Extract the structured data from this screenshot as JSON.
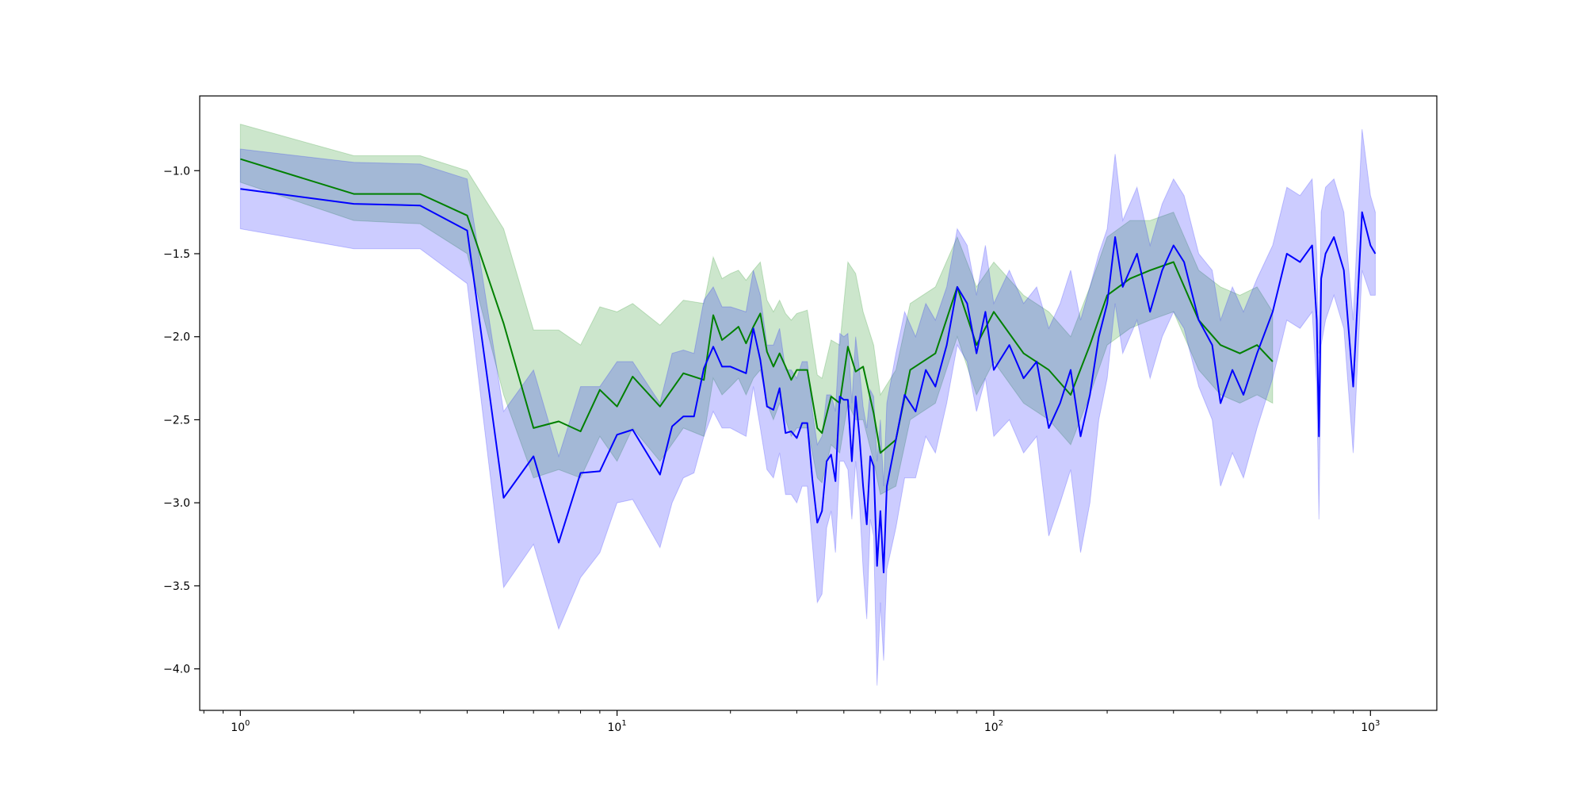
{
  "chart_data": {
    "type": "line",
    "title": "",
    "xlabel": "",
    "ylabel": "",
    "x_scale": "log",
    "xlim": [
      0.78,
      1500
    ],
    "ylim": [
      -4.25,
      -0.55
    ],
    "x_ticks": [
      {
        "value": 1,
        "base": "10",
        "exp": "0"
      },
      {
        "value": 10,
        "base": "10",
        "exp": "1"
      },
      {
        "value": 100,
        "base": "10",
        "exp": "2"
      },
      {
        "value": 1000,
        "base": "10",
        "exp": "3"
      }
    ],
    "y_ticks": [
      {
        "value": -1.0,
        "label": "−1.0"
      },
      {
        "value": -1.5,
        "label": "−1.5"
      },
      {
        "value": -2.0,
        "label": "−2.0"
      },
      {
        "value": -2.5,
        "label": "−2.5"
      },
      {
        "value": -3.0,
        "label": "−3.0"
      },
      {
        "value": -3.5,
        "label": "−3.5"
      },
      {
        "value": -4.0,
        "label": "−4.0"
      }
    ],
    "grid": false,
    "legend": "none",
    "series": [
      {
        "color": "#008000",
        "band_color": "#008000",
        "band_opacity": 0.2,
        "x": [
          1,
          2,
          3,
          4,
          5,
          6,
          7,
          8,
          9,
          10,
          11,
          13,
          15,
          17,
          18,
          19,
          20,
          21,
          22,
          23,
          24,
          25,
          26,
          27,
          28,
          29,
          30,
          32,
          34,
          35,
          37,
          39,
          41,
          43,
          45,
          48,
          50,
          55,
          60,
          70,
          80,
          90,
          100,
          120,
          140,
          160,
          180,
          200,
          230,
          260,
          300,
          350,
          400,
          450,
          500,
          550
        ],
        "y": [
          -0.93,
          -1.14,
          -1.14,
          -1.27,
          -1.92,
          -2.55,
          -2.51,
          -2.57,
          -2.32,
          -2.42,
          -2.24,
          -2.42,
          -2.22,
          -2.26,
          -1.87,
          -2.02,
          -1.98,
          -1.94,
          -2.04,
          -1.94,
          -1.86,
          -2.09,
          -2.18,
          -2.1,
          -2.18,
          -2.26,
          -2.2,
          -2.2,
          -2.55,
          -2.58,
          -2.36,
          -2.4,
          -2.06,
          -2.21,
          -2.18,
          -2.46,
          -2.7,
          -2.62,
          -2.2,
          -2.1,
          -1.7,
          -2.05,
          -1.85,
          -2.1,
          -2.2,
          -2.35,
          -2.05,
          -1.75,
          -1.65,
          -1.6,
          -1.55,
          -1.9,
          -2.05,
          -2.1,
          -2.05,
          -2.15
        ],
        "lower": [
          -1.07,
          -1.3,
          -1.32,
          -1.5,
          -2.35,
          -2.85,
          -2.8,
          -2.85,
          -2.6,
          -2.75,
          -2.55,
          -2.75,
          -2.55,
          -2.6,
          -2.25,
          -2.35,
          -2.3,
          -2.25,
          -2.35,
          -2.25,
          -2.2,
          -2.4,
          -2.5,
          -2.4,
          -2.5,
          -2.6,
          -2.55,
          -2.55,
          -2.85,
          -2.88,
          -2.65,
          -2.7,
          -2.4,
          -2.5,
          -2.5,
          -2.75,
          -2.95,
          -2.9,
          -2.5,
          -2.4,
          -2.0,
          -2.35,
          -2.15,
          -2.4,
          -2.5,
          -2.65,
          -2.35,
          -2.05,
          -1.95,
          -1.9,
          -1.85,
          -2.2,
          -2.35,
          -2.4,
          -2.35,
          -2.4
        ],
        "upper": [
          -0.72,
          -0.91,
          -0.91,
          -1.0,
          -1.35,
          -1.96,
          -1.96,
          -2.05,
          -1.82,
          -1.85,
          -1.8,
          -1.93,
          -1.78,
          -1.8,
          -1.52,
          -1.65,
          -1.62,
          -1.6,
          -1.66,
          -1.6,
          -1.55,
          -1.78,
          -1.85,
          -1.78,
          -1.86,
          -1.9,
          -1.86,
          -1.84,
          -2.23,
          -2.25,
          -2.02,
          -2.05,
          -1.55,
          -1.62,
          -1.85,
          -2.05,
          -2.35,
          -2.2,
          -1.8,
          -1.7,
          -1.4,
          -1.7,
          -1.55,
          -1.75,
          -1.85,
          -2.0,
          -1.7,
          -1.4,
          -1.3,
          -1.3,
          -1.25,
          -1.6,
          -1.7,
          -1.75,
          -1.7,
          -1.85
        ]
      },
      {
        "color": "#0000ff",
        "band_color": "#0000ff",
        "band_opacity": 0.2,
        "x": [
          1,
          2,
          3,
          4,
          5,
          6,
          7,
          8,
          9,
          10,
          11,
          13,
          14,
          15,
          16,
          17,
          18,
          19,
          20,
          22,
          23,
          24,
          25,
          26,
          27,
          28,
          29,
          30,
          31,
          32,
          33,
          34,
          35,
          36,
          37,
          38,
          39,
          40,
          41,
          42,
          43,
          44,
          45,
          46,
          47,
          48,
          49,
          50,
          51,
          52,
          55,
          58,
          62,
          66,
          70,
          75,
          80,
          85,
          90,
          95,
          100,
          110,
          120,
          130,
          140,
          150,
          160,
          170,
          180,
          190,
          200,
          210,
          220,
          240,
          260,
          280,
          300,
          320,
          350,
          380,
          400,
          430,
          460,
          500,
          550,
          600,
          650,
          700,
          720,
          730,
          740,
          760,
          800,
          850,
          900,
          950,
          1000,
          1030
        ],
        "y": [
          -1.11,
          -1.2,
          -1.21,
          -1.36,
          -2.97,
          -2.72,
          -3.24,
          -2.82,
          -2.81,
          -2.59,
          -2.56,
          -2.83,
          -2.54,
          -2.48,
          -2.48,
          -2.19,
          -2.06,
          -2.18,
          -2.18,
          -2.22,
          -1.95,
          -2.14,
          -2.42,
          -2.44,
          -2.31,
          -2.58,
          -2.57,
          -2.61,
          -2.52,
          -2.52,
          -2.86,
          -3.12,
          -3.05,
          -2.75,
          -2.71,
          -2.87,
          -2.36,
          -2.38,
          -2.38,
          -2.75,
          -2.36,
          -2.6,
          -2.9,
          -3.13,
          -2.72,
          -2.78,
          -3.38,
          -3.05,
          -3.42,
          -2.9,
          -2.62,
          -2.35,
          -2.45,
          -2.2,
          -2.3,
          -2.05,
          -1.7,
          -1.8,
          -2.1,
          -1.85,
          -2.2,
          -2.05,
          -2.25,
          -2.15,
          -2.55,
          -2.4,
          -2.2,
          -2.6,
          -2.35,
          -2.0,
          -1.8,
          -1.4,
          -1.7,
          -1.5,
          -1.85,
          -1.6,
          -1.45,
          -1.55,
          -1.9,
          -2.05,
          -2.4,
          -2.2,
          -2.35,
          -2.1,
          -1.85,
          -1.5,
          -1.55,
          -1.45,
          -1.9,
          -2.6,
          -1.65,
          -1.5,
          -1.4,
          -1.6,
          -2.3,
          -1.25,
          -1.45,
          -1.5
        ],
        "lower": [
          -1.35,
          -1.47,
          -1.47,
          -1.68,
          -3.51,
          -3.25,
          -3.76,
          -3.45,
          -3.3,
          -3.0,
          -2.98,
          -3.27,
          -3.0,
          -2.85,
          -2.82,
          -2.6,
          -2.45,
          -2.55,
          -2.55,
          -2.6,
          -2.3,
          -2.55,
          -2.8,
          -2.85,
          -2.7,
          -2.95,
          -2.95,
          -3.0,
          -2.9,
          -2.9,
          -3.25,
          -3.6,
          -3.55,
          -3.15,
          -3.05,
          -3.3,
          -2.75,
          -2.75,
          -2.8,
          -3.1,
          -2.75,
          -3.0,
          -3.4,
          -3.7,
          -3.1,
          -3.2,
          -4.1,
          -3.6,
          -3.95,
          -3.4,
          -3.15,
          -2.85,
          -2.85,
          -2.6,
          -2.7,
          -2.4,
          -2.05,
          -2.15,
          -2.45,
          -2.25,
          -2.6,
          -2.5,
          -2.7,
          -2.6,
          -3.2,
          -3.0,
          -2.8,
          -3.3,
          -3.0,
          -2.5,
          -2.25,
          -1.8,
          -2.1,
          -1.9,
          -2.25,
          -2.0,
          -1.85,
          -1.95,
          -2.3,
          -2.5,
          -2.9,
          -2.7,
          -2.85,
          -2.55,
          -2.25,
          -1.9,
          -1.95,
          -1.85,
          -2.3,
          -3.1,
          -2.05,
          -1.9,
          -1.75,
          -1.95,
          -2.7,
          -1.6,
          -1.75,
          -1.75
        ],
        "upper": [
          -0.87,
          -0.95,
          -0.96,
          -1.05,
          -2.45,
          -2.2,
          -2.72,
          -2.3,
          -2.3,
          -2.15,
          -2.15,
          -2.4,
          -2.1,
          -2.08,
          -2.1,
          -1.78,
          -1.7,
          -1.82,
          -1.82,
          -1.85,
          -1.6,
          -1.75,
          -2.05,
          -2.05,
          -1.95,
          -2.2,
          -2.2,
          -2.25,
          -2.15,
          -2.15,
          -2.45,
          -2.65,
          -2.6,
          -2.35,
          -2.35,
          -2.45,
          -1.98,
          -2.0,
          -1.98,
          -2.4,
          -2.0,
          -2.2,
          -2.42,
          -2.55,
          -2.32,
          -2.36,
          -2.75,
          -2.5,
          -2.9,
          -2.4,
          -2.1,
          -1.85,
          -2.0,
          -1.8,
          -1.9,
          -1.7,
          -1.35,
          -1.45,
          -1.75,
          -1.45,
          -1.8,
          -1.6,
          -1.8,
          -1.7,
          -1.95,
          -1.8,
          -1.6,
          -1.9,
          -1.7,
          -1.5,
          -1.35,
          -0.9,
          -1.3,
          -1.1,
          -1.45,
          -1.2,
          -1.05,
          -1.15,
          -1.5,
          -1.6,
          -1.9,
          -1.7,
          -1.85,
          -1.65,
          -1.45,
          -1.1,
          -1.15,
          -1.05,
          -1.5,
          -2.1,
          -1.25,
          -1.1,
          -1.05,
          -1.25,
          -1.9,
          -0.75,
          -1.15,
          -1.25
        ]
      }
    ]
  }
}
